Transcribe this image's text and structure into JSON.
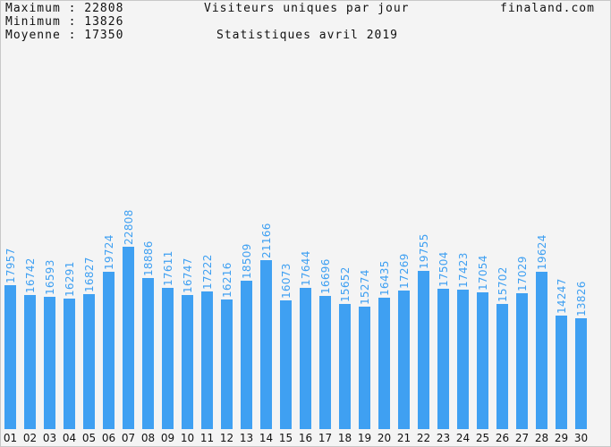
{
  "stats": {
    "max_label": "Maximum",
    "max_value": "22808",
    "min_label": "Minimum",
    "min_value": "13826",
    "avg_label": "Moyenne",
    "avg_value": "17350"
  },
  "site": "finaland.com",
  "colors": {
    "bar": "#3fa0f2",
    "label": "#3fa0f2",
    "axis_text": "#111111",
    "background": "#f4f4f4"
  },
  "chart_data": {
    "type": "bar",
    "title": "Visiteurs uniques par jour",
    "subtitle": "Statistiques avril 2019",
    "categories": [
      "01",
      "02",
      "03",
      "04",
      "05",
      "06",
      "07",
      "08",
      "09",
      "10",
      "11",
      "12",
      "13",
      "14",
      "15",
      "16",
      "17",
      "18",
      "19",
      "20",
      "21",
      "22",
      "23",
      "24",
      "25",
      "26",
      "27",
      "28",
      "29",
      "30"
    ],
    "values": [
      17957,
      16742,
      16593,
      16291,
      16827,
      19724,
      22808,
      18886,
      17611,
      16747,
      17222,
      16216,
      18509,
      21166,
      16073,
      17644,
      16696,
      15652,
      15274,
      16435,
      17269,
      19755,
      17504,
      17423,
      17054,
      15702,
      17029,
      19624,
      14247,
      13826
    ],
    "ylim": [
      0,
      38000
    ],
    "grid": false,
    "legend": "none"
  }
}
